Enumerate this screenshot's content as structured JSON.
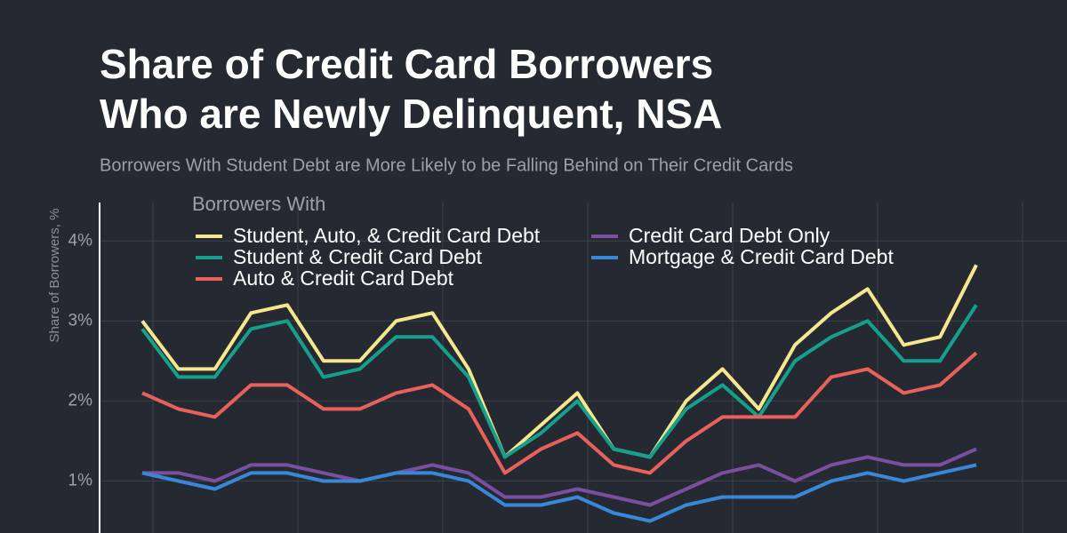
{
  "chart_data": {
    "type": "line",
    "title": [
      "Share of Credit Card Borrowers",
      "Who are Newly Delinquent, NSA"
    ],
    "subtitle": "Borrowers With Student Debt are More Likely to be Falling Behind on Their Credit Cards",
    "y_label": "Share of Borrowers, %",
    "legend_title": "Borrowers With",
    "categories": [
      null,
      null,
      null,
      null,
      null,
      null,
      null,
      null,
      null,
      null,
      null,
      null,
      null,
      null,
      null,
      null,
      null,
      null,
      null,
      null,
      null,
      null,
      null,
      null
    ],
    "series": [
      {
        "name": "Student, Auto, & Credit Card Debt",
        "color": "#f6e68e",
        "values": [
          3.0,
          2.4,
          2.4,
          3.1,
          3.2,
          2.5,
          2.5,
          3.0,
          3.1,
          2.4,
          1.3,
          1.7,
          2.1,
          1.4,
          1.3,
          2.0,
          2.4,
          1.9,
          2.7,
          3.1,
          3.4,
          2.7,
          2.8,
          3.7
        ]
      },
      {
        "name": "Student & Credit Card Debt",
        "color": "#16a08c",
        "values": [
          2.9,
          2.3,
          2.3,
          2.9,
          3.0,
          2.3,
          2.4,
          2.8,
          2.8,
          2.3,
          1.3,
          1.6,
          2.0,
          1.4,
          1.3,
          1.9,
          2.2,
          1.8,
          2.5,
          2.8,
          3.0,
          2.5,
          2.5,
          3.2
        ]
      },
      {
        "name": "Auto & Credit Card Debt",
        "color": "#e9615a",
        "values": [
          2.1,
          1.9,
          1.8,
          2.2,
          2.2,
          1.9,
          1.9,
          2.1,
          2.2,
          1.9,
          1.1,
          1.4,
          1.6,
          1.2,
          1.1,
          1.5,
          1.8,
          1.8,
          1.8,
          2.3,
          2.4,
          2.1,
          2.2,
          2.6
        ]
      },
      {
        "name": "Credit Card Debt Only",
        "color": "#7a4fa0",
        "values": [
          1.1,
          1.1,
          1.0,
          1.2,
          1.2,
          1.1,
          1.0,
          1.1,
          1.2,
          1.1,
          0.8,
          0.8,
          0.9,
          0.8,
          0.7,
          0.9,
          1.1,
          1.2,
          1.0,
          1.2,
          1.3,
          1.2,
          1.2,
          1.4
        ]
      },
      {
        "name": "Mortgage & Credit Card Debt",
        "color": "#3a87d8",
        "values": [
          1.1,
          1.0,
          0.9,
          1.1,
          1.1,
          1.0,
          1.0,
          1.1,
          1.1,
          1.0,
          0.7,
          0.7,
          0.8,
          0.6,
          0.5,
          0.7,
          0.8,
          0.8,
          0.8,
          1.0,
          1.1,
          1.0,
          1.1,
          1.2
        ]
      }
    ],
    "ylim": [
      0.35,
      4.48
    ],
    "yticks": [
      {
        "value": 1,
        "label": "1%"
      },
      {
        "value": 2,
        "label": "2%"
      },
      {
        "value": 3,
        "label": "3%"
      },
      {
        "value": 4,
        "label": "4%"
      }
    ],
    "grid": true
  }
}
